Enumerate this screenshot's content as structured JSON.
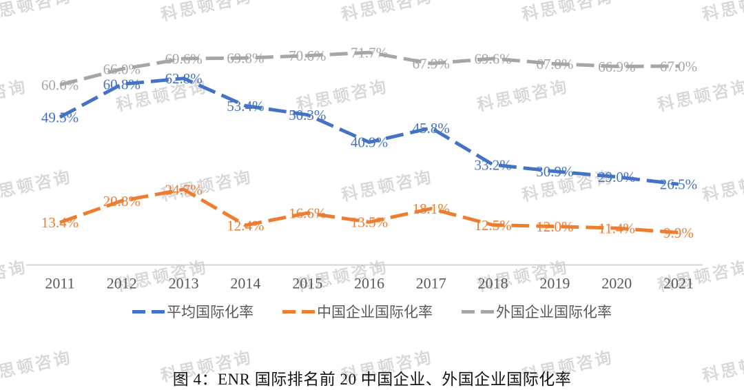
{
  "watermark": {
    "text": "科思顿咨询"
  },
  "caption": "图 4：ENR 国际排名前 20 中国企业、外国企业国际化率",
  "legend": {
    "items": [
      {
        "id": "average",
        "label": "平均国际化率",
        "color": "#4472C4"
      },
      {
        "id": "chinese-enterprises",
        "label": "中国企业国际化率",
        "color": "#ED7D31"
      },
      {
        "id": "foreign-enterprises",
        "label": "外国企业国际化率",
        "color": "#A6A6A6"
      }
    ]
  },
  "chart_data": {
    "type": "line",
    "title": "图 4：ENR 国际排名前 20 中国企业、外国企业国际化率",
    "x": [
      2011,
      2012,
      2013,
      2014,
      2015,
      2016,
      2017,
      2018,
      2019,
      2020,
      2021
    ],
    "xlabel": "",
    "ylabel": "",
    "grid": false,
    "legend_position": "bottom",
    "line_style": "dashed",
    "data_labels": true,
    "data_label_format": "0.0%",
    "series": [
      {
        "name": "平均国际化率",
        "color": "#4472C4",
        "values": [
          49.5,
          60.8,
          62.8,
          53.4,
          50.3,
          40.9,
          45.8,
          33.2,
          30.9,
          29.0,
          26.5
        ]
      },
      {
        "name": "中国企业国际化率",
        "color": "#ED7D31",
        "values": [
          13.4,
          20.8,
          24.7,
          12.4,
          16.6,
          13.5,
          18.1,
          12.5,
          12.0,
          11.4,
          9.9
        ]
      },
      {
        "name": "外国企业国际化率",
        "color": "#A6A6A6",
        "values": [
          60.6,
          66.0,
          69.6,
          69.8,
          70.6,
          71.7,
          67.9,
          69.6,
          67.8,
          66.9,
          67.0
        ]
      }
    ],
    "axis_line_color": "#c8c8c8",
    "tick_label_color": "#595959"
  }
}
